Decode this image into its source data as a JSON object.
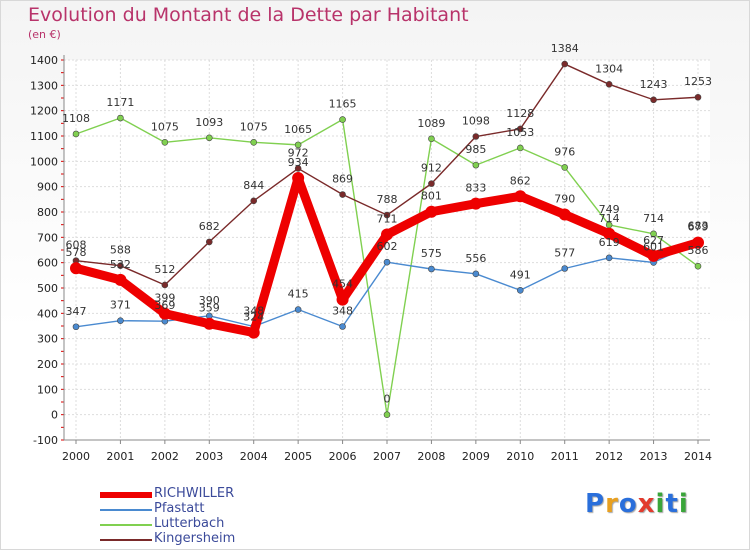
{
  "title": "Evolution du Montant de la Dette par Habitant",
  "unit": "(en €)",
  "logo": {
    "text": "Proxiti",
    "letters": [
      {
        "ch": "P",
        "color": "#2a6fdb"
      },
      {
        "ch": "r",
        "color": "#e8a020"
      },
      {
        "ch": "o",
        "color": "#2a6fdb"
      },
      {
        "ch": "x",
        "color": "#e23b2e"
      },
      {
        "ch": "i",
        "color": "#3aa53a"
      },
      {
        "ch": "t",
        "color": "#2a6fdb"
      },
      {
        "ch": "i",
        "color": "#3aa53a"
      }
    ]
  },
  "chart_data": {
    "type": "line",
    "x": [
      "2000",
      "2001",
      "2002",
      "2003",
      "2004",
      "2005",
      "2006",
      "2007",
      "2008",
      "2009",
      "2010",
      "2011",
      "2012",
      "2013",
      "2014"
    ],
    "ylim": [
      -100,
      1400
    ],
    "yticks": [
      "-100",
      "0",
      "100",
      "200",
      "300",
      "400",
      "500",
      "600",
      "700",
      "800",
      "900",
      "1000",
      "1100",
      "1200",
      "1300",
      "1400"
    ],
    "grid": true,
    "legend_position": "bottom-left",
    "series": [
      {
        "name": "RICHWILLER",
        "color": "#ee0000",
        "values": [
          578,
          532,
          399,
          359,
          324,
          934,
          454,
          711,
          801,
          833,
          862,
          790,
          714,
          627,
          679
        ]
      },
      {
        "name": "Pfastatt",
        "color": "#4a8ad0",
        "values": [
          347,
          371,
          369,
          390,
          348,
          415,
          348,
          602,
          575,
          556,
          491,
          577,
          619,
          601,
          683
        ]
      },
      {
        "name": "Lutterbach",
        "color": "#80d050",
        "values": [
          1108,
          1171,
          1075,
          1093,
          1075,
          1065,
          1165,
          0,
          1089,
          985,
          1053,
          976,
          749,
          714,
          586
        ]
      },
      {
        "name": "Kingersheim",
        "color": "#7a2a2a",
        "values": [
          608,
          588,
          512,
          682,
          844,
          972,
          869,
          788,
          912,
          1098,
          1128,
          1384,
          1304,
          1243,
          1253
        ]
      }
    ]
  }
}
